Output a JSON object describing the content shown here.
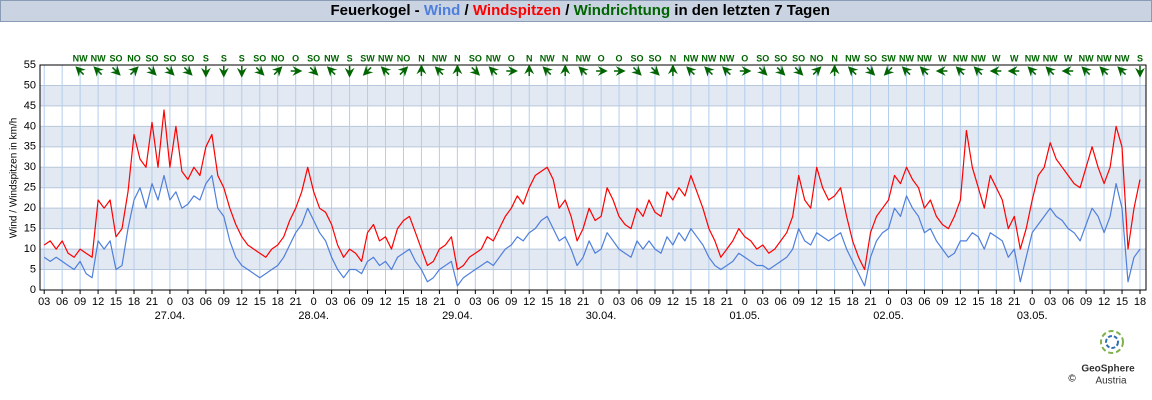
{
  "chart_data": {
    "type": "line",
    "title": {
      "prefix": "Feuerkogel - ",
      "separator": " / ",
      "suffix": " in den letzten 7 Tagen"
    },
    "y_label": "Wind / Windspitzen in km/h",
    "x": [
      3,
      4,
      5,
      6,
      7,
      8,
      9,
      10,
      11,
      12,
      13,
      14,
      15,
      16,
      17,
      18,
      19,
      20,
      21,
      22,
      23,
      24,
      25,
      26,
      27,
      28,
      29,
      30,
      31,
      32,
      33,
      34,
      35,
      36,
      37,
      38,
      39,
      40,
      41,
      42,
      43,
      44,
      45,
      46,
      47,
      48,
      49,
      50,
      51,
      52,
      53,
      54,
      55,
      56,
      57,
      58,
      59,
      60,
      61,
      62,
      63,
      64,
      65,
      66,
      67,
      68,
      69,
      70,
      71,
      72,
      73,
      74,
      75,
      76,
      77,
      78,
      79,
      80,
      81,
      82,
      83,
      84,
      85,
      86,
      87,
      88,
      89,
      90,
      91,
      92,
      93,
      94,
      95,
      96,
      97,
      98,
      99,
      100,
      101,
      102,
      103,
      104,
      105,
      106,
      107,
      108,
      109,
      110,
      111,
      112,
      113,
      114,
      115,
      116,
      117,
      118,
      119,
      120,
      121,
      122,
      123,
      124,
      125,
      126,
      127,
      128,
      129,
      130,
      131,
      132,
      133,
      134,
      135,
      136,
      137,
      138,
      139,
      140,
      141,
      142,
      143,
      144,
      145,
      146,
      147,
      148,
      149,
      150,
      151,
      152,
      153,
      154,
      155,
      156,
      157,
      158,
      159,
      160,
      161,
      162,
      163,
      164,
      165,
      166,
      167,
      168,
      169,
      170,
      171,
      172,
      173,
      174,
      175,
      176,
      177,
      178,
      179,
      180,
      181,
      182,
      183,
      184,
      185,
      186
    ],
    "series": [
      {
        "name": "Wind",
        "color": "#4f7fdc",
        "values": [
          8,
          7,
          8,
          7,
          6,
          5,
          7,
          4,
          3,
          12,
          10,
          12,
          5,
          6,
          15,
          22,
          25,
          20,
          26,
          22,
          28,
          22,
          24,
          20,
          21,
          23,
          22,
          26,
          28,
          20,
          18,
          12,
          8,
          6,
          5,
          4,
          3,
          4,
          5,
          6,
          8,
          11,
          14,
          16,
          20,
          17,
          14,
          12,
          8,
          5,
          3,
          5,
          5,
          4,
          7,
          8,
          6,
          7,
          5,
          8,
          9,
          10,
          7,
          5,
          2,
          3,
          5,
          6,
          7,
          1,
          3,
          4,
          5,
          6,
          7,
          6,
          8,
          10,
          11,
          13,
          12,
          14,
          15,
          17,
          18,
          15,
          12,
          13,
          10,
          6,
          8,
          12,
          9,
          10,
          14,
          12,
          10,
          9,
          8,
          12,
          10,
          12,
          10,
          9,
          13,
          11,
          14,
          12,
          15,
          13,
          11,
          8,
          6,
          5,
          6,
          7,
          9,
          8,
          7,
          6,
          6,
          5,
          6,
          7,
          8,
          10,
          15,
          12,
          11,
          14,
          13,
          12,
          13,
          14,
          10,
          7,
          4,
          1,
          8,
          12,
          14,
          15,
          20,
          18,
          23,
          20,
          18,
          14,
          15,
          12,
          10,
          8,
          9,
          12,
          12,
          14,
          13,
          10,
          14,
          13,
          12,
          8,
          10,
          2,
          8,
          14,
          16,
          18,
          20,
          18,
          17,
          15,
          14,
          12,
          16,
          20,
          18,
          14,
          18,
          26,
          20,
          2,
          8,
          10
        ]
      },
      {
        "name": "Windspitzen",
        "color": "#ff0000",
        "values": [
          11,
          12,
          10,
          12,
          9,
          8,
          10,
          9,
          8,
          22,
          20,
          22,
          13,
          15,
          24,
          38,
          32,
          30,
          41,
          30,
          44,
          30,
          40,
          29,
          27,
          30,
          28,
          35,
          38,
          28,
          25,
          20,
          16,
          13,
          11,
          10,
          9,
          8,
          10,
          11,
          13,
          17,
          20,
          24,
          30,
          24,
          20,
          19,
          16,
          11,
          8,
          10,
          9,
          7,
          14,
          16,
          12,
          13,
          10,
          15,
          17,
          18,
          14,
          10,
          6,
          7,
          10,
          11,
          13,
          5,
          6,
          8,
          9,
          10,
          13,
          12,
          15,
          18,
          20,
          23,
          21,
          25,
          28,
          29,
          30,
          27,
          20,
          22,
          18,
          12,
          15,
          20,
          17,
          18,
          25,
          22,
          18,
          16,
          15,
          20,
          18,
          22,
          19,
          18,
          24,
          22,
          25,
          23,
          28,
          24,
          20,
          15,
          12,
          8,
          10,
          12,
          15,
          13,
          12,
          10,
          11,
          9,
          10,
          12,
          14,
          18,
          28,
          22,
          20,
          30,
          25,
          22,
          23,
          25,
          18,
          12,
          8,
          5,
          14,
          18,
          20,
          22,
          28,
          26,
          30,
          27,
          25,
          20,
          22,
          18,
          16,
          15,
          18,
          22,
          39,
          30,
          25,
          20,
          28,
          25,
          22,
          15,
          18,
          10,
          15,
          22,
          28,
          30,
          36,
          32,
          30,
          28,
          26,
          25,
          30,
          35,
          30,
          26,
          30,
          40,
          35,
          10,
          20,
          27
        ]
      }
    ],
    "directions": {
      "name": "Windrichtung",
      "color": "#006400",
      "x": [
        9,
        12,
        15,
        18,
        21,
        24,
        27,
        30,
        33,
        36,
        39,
        42,
        45,
        48,
        51,
        54,
        57,
        60,
        63,
        66,
        69,
        72,
        75,
        78,
        81,
        84,
        87,
        90,
        93,
        96,
        99,
        102,
        105,
        108,
        111,
        114,
        117,
        120,
        123,
        126,
        129,
        132,
        135,
        138,
        141,
        144,
        147,
        150,
        153,
        156,
        159,
        162,
        165,
        168,
        171,
        174,
        177,
        180,
        183,
        186
      ],
      "labels": [
        "NW",
        "NW",
        "SO",
        "NO",
        "SO",
        "SO",
        "SO",
        "S",
        "S",
        "S",
        "SO",
        "NO",
        "O",
        "SO",
        "NW",
        "S",
        "SW",
        "NW",
        "NO",
        "N",
        "NW",
        "N",
        "SO",
        "NW",
        "O",
        "N",
        "NW",
        "N",
        "NW",
        "O",
        "O",
        "SO",
        "SO",
        "N",
        "NW",
        "NW",
        "NW",
        "O",
        "SO",
        "SO",
        "SO",
        "NO",
        "N",
        "NW",
        "SO",
        "SW",
        "NW",
        "NW",
        "W",
        "NW",
        "NW",
        "W",
        "W",
        "NW",
        "NW",
        "W",
        "NW",
        "NW",
        "NW",
        "S"
      ]
    },
    "xlim": [
      2.3,
      187
    ],
    "ylim": [
      0,
      55
    ],
    "yticks": [
      0,
      5,
      10,
      15,
      20,
      25,
      30,
      35,
      40,
      45,
      50,
      55
    ],
    "xticks": [
      {
        "value": 3,
        "label": "03"
      },
      {
        "value": 6,
        "label": "06"
      },
      {
        "value": 9,
        "label": "09"
      },
      {
        "value": 12,
        "label": "12"
      },
      {
        "value": 15,
        "label": "15"
      },
      {
        "value": 18,
        "label": "18"
      },
      {
        "value": 21,
        "label": "21"
      },
      {
        "value": 24,
        "label": "0"
      },
      {
        "value": 27,
        "label": "03"
      },
      {
        "value": 30,
        "label": "06"
      },
      {
        "value": 33,
        "label": "09"
      },
      {
        "value": 36,
        "label": "12"
      },
      {
        "value": 39,
        "label": "15"
      },
      {
        "value": 42,
        "label": "18"
      },
      {
        "value": 45,
        "label": "21"
      },
      {
        "value": 48,
        "label": "0"
      },
      {
        "value": 51,
        "label": "03"
      },
      {
        "value": 54,
        "label": "06"
      },
      {
        "value": 57,
        "label": "09"
      },
      {
        "value": 60,
        "label": "12"
      },
      {
        "value": 63,
        "label": "15"
      },
      {
        "value": 66,
        "label": "18"
      },
      {
        "value": 69,
        "label": "21"
      },
      {
        "value": 72,
        "label": "0"
      },
      {
        "value": 75,
        "label": "03"
      },
      {
        "value": 78,
        "label": "06"
      },
      {
        "value": 81,
        "label": "09"
      },
      {
        "value": 84,
        "label": "12"
      },
      {
        "value": 87,
        "label": "15"
      },
      {
        "value": 90,
        "label": "18"
      },
      {
        "value": 93,
        "label": "21"
      },
      {
        "value": 96,
        "label": "0"
      },
      {
        "value": 99,
        "label": "03"
      },
      {
        "value": 102,
        "label": "06"
      },
      {
        "value": 105,
        "label": "09"
      },
      {
        "value": 108,
        "label": "12"
      },
      {
        "value": 111,
        "label": "15"
      },
      {
        "value": 114,
        "label": "18"
      },
      {
        "value": 117,
        "label": "21"
      },
      {
        "value": 120,
        "label": "0"
      },
      {
        "value": 123,
        "label": "03"
      },
      {
        "value": 126,
        "label": "06"
      },
      {
        "value": 129,
        "label": "09"
      },
      {
        "value": 132,
        "label": "12"
      },
      {
        "value": 135,
        "label": "15"
      },
      {
        "value": 138,
        "label": "18"
      },
      {
        "value": 141,
        "label": "21"
      },
      {
        "value": 144,
        "label": "0"
      },
      {
        "value": 147,
        "label": "03"
      },
      {
        "value": 150,
        "label": "06"
      },
      {
        "value": 153,
        "label": "09"
      },
      {
        "value": 156,
        "label": "12"
      },
      {
        "value": 159,
        "label": "15"
      },
      {
        "value": 162,
        "label": "18"
      },
      {
        "value": 165,
        "label": "21"
      },
      {
        "value": 168,
        "label": "0"
      },
      {
        "value": 171,
        "label": "03"
      },
      {
        "value": 174,
        "label": "06"
      },
      {
        "value": 177,
        "label": "09"
      },
      {
        "value": 180,
        "label": "12"
      },
      {
        "value": 183,
        "label": "15"
      },
      {
        "value": 186,
        "label": "18"
      }
    ],
    "date_ticks": [
      {
        "value": 24,
        "label": "27.04."
      },
      {
        "value": 48,
        "label": "28.04."
      },
      {
        "value": 72,
        "label": "29.04."
      },
      {
        "value": 96,
        "label": "30.04."
      },
      {
        "value": 120,
        "label": "01.05."
      },
      {
        "value": 144,
        "label": "02.05."
      },
      {
        "value": 168,
        "label": "03.05."
      }
    ],
    "grid": true,
    "bands": true,
    "logo": {
      "name": "GeoSphere",
      "sub": "Austria",
      "copyright": "©"
    }
  }
}
